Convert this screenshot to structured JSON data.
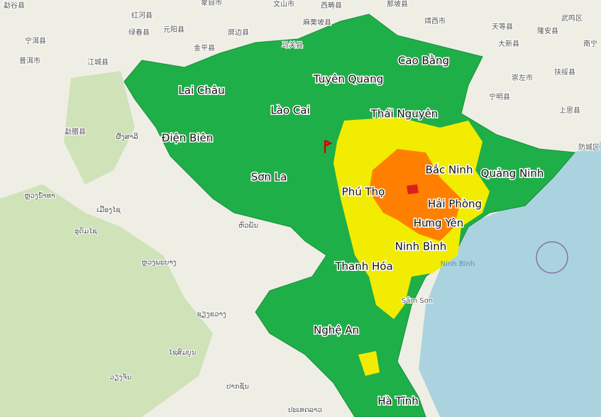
{
  "provinces": [
    "Lai Châu",
    "Lào Cai",
    "Tuyên Quang",
    "Cao Bằng",
    "Thái Nguyên",
    "Điện Biên",
    "Sơn La",
    "Bắc Ninh",
    "Quảng Ninh",
    "Phú Thọ",
    "Hải Phòng",
    "Hưng Yên",
    "Ninh Bình",
    "Thanh Hóa",
    "Nghệ An",
    "Hà Tĩnh"
  ],
  "places": [
    "勐谷县",
    "红河县",
    "绿春县",
    "元阳县",
    "金平县",
    "屏边县",
    "马关县",
    "麻栗坡县",
    "西畴县",
    "文山市",
    "蒙自市",
    "那坡县",
    "靖西市",
    "天等县",
    "大新县",
    "隆安县",
    "武鸣区",
    "南宁",
    "崇左市",
    "扶绥县",
    "宁明县",
    "上思县",
    "防城区",
    "宁洱县",
    "普洱市",
    "江城县",
    "勐腊县",
    "ຜົ້ງສາລີ",
    "ຫຼວງນ້ຳທາ",
    "ເມືອງໄຊ",
    "ອຸດົມໄຊ",
    "ຫົວພັນ",
    "ຫຼວງພະບາງ",
    "ຊຽງຂວາງ",
    "ໄຊສົມບູນ",
    "ປາກຊັນ",
    "ປະເທດລາວ",
    "ວຽງຈັນ",
    "Ninh Bình",
    "Sầm Sơn"
  ]
}
